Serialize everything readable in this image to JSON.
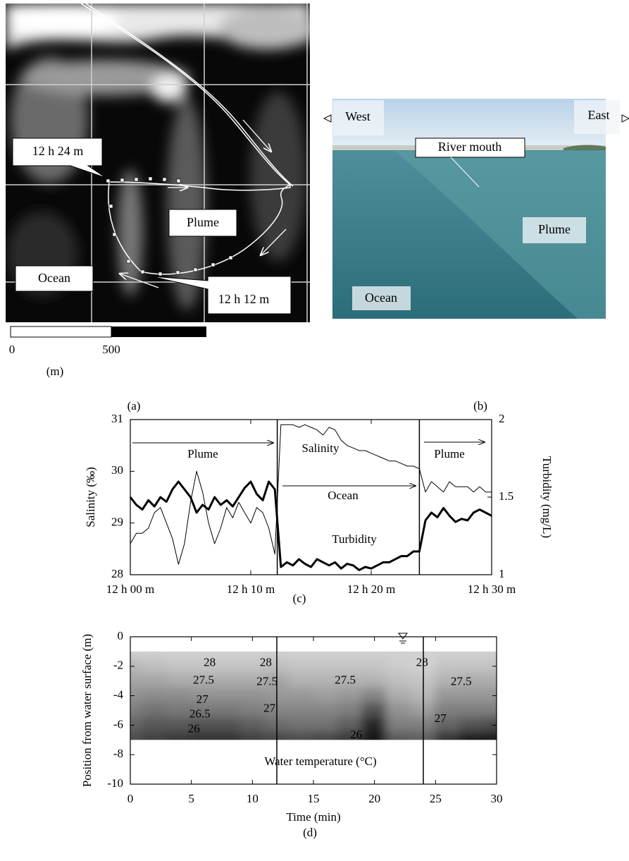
{
  "panel_a": {
    "labels": [
      "12 h 24 m",
      "Plume",
      "Ocean",
      "12 h 12 m"
    ],
    "scale_ticks": [
      0,
      500
    ],
    "scale_unit": "(m)",
    "caption": "(a)"
  },
  "panel_b": {
    "west": "West",
    "east": "East",
    "river_mouth": "River mouth",
    "plume": "Plume",
    "ocean": "Ocean",
    "caption": "(b)"
  },
  "chart_data": [
    {
      "type": "line",
      "caption": "(c)",
      "ylabel": "Salinity (‰)",
      "y2label": "Turbidity (mg/L)",
      "x": [
        0,
        0.5,
        1,
        1.5,
        2,
        2.5,
        3,
        3.5,
        4,
        4.5,
        5,
        5.5,
        6,
        6.5,
        7,
        7.5,
        8,
        8.5,
        9,
        9.5,
        10,
        10.5,
        11,
        11.5,
        12,
        12.5,
        13,
        13.5,
        14,
        14.5,
        15,
        15.5,
        16,
        16.5,
        17,
        17.5,
        18,
        18.5,
        19,
        19.5,
        20,
        20.5,
        21,
        21.5,
        22,
        22.5,
        23,
        23.5,
        24,
        24.5,
        25,
        25.5,
        26,
        26.5,
        27,
        27.5,
        28,
        28.5,
        29,
        29.5,
        30
      ],
      "xlim": [
        0,
        30
      ],
      "xticks": [
        {
          "value": 0,
          "label": "12 h 00 m"
        },
        {
          "value": 10,
          "label": "12 h 10 m"
        },
        {
          "value": 20,
          "label": "12 h 20 m"
        },
        {
          "value": 30,
          "label": "12 h 30 m"
        }
      ],
      "ylim": [
        28,
        31
      ],
      "yticks": [
        28,
        29,
        30,
        31
      ],
      "y2lim": [
        1,
        2
      ],
      "y2ticks": [
        1,
        1.5,
        2
      ],
      "vlines": [
        12.2,
        24
      ],
      "annotations": [
        "Plume",
        "Ocean",
        "Plume"
      ],
      "series": [
        {
          "name": "Salinity",
          "color": "#000000",
          "line_width": 1,
          "values": [
            28.6,
            28.8,
            28.8,
            28.9,
            29.2,
            29.3,
            29.0,
            28.7,
            28.2,
            28.6,
            29.4,
            30.0,
            29.6,
            29.0,
            28.6,
            28.9,
            29.3,
            29.1,
            29.4,
            29.2,
            29.0,
            29.3,
            29.2,
            28.9,
            28.4,
            30.9,
            30.9,
            30.9,
            30.85,
            30.9,
            30.85,
            30.8,
            30.7,
            30.85,
            30.8,
            30.6,
            30.5,
            30.45,
            30.4,
            30.4,
            30.35,
            30.3,
            30.25,
            30.2,
            30.2,
            30.15,
            30.1,
            30.1,
            30.05,
            29.6,
            29.8,
            29.7,
            29.6,
            29.8,
            29.7,
            29.7,
            29.7,
            29.6,
            29.7,
            29.6,
            29.6
          ]
        },
        {
          "name": "Turbidity",
          "color": "#000000",
          "line_width": 3,
          "axis": "y2",
          "values": [
            1.5,
            1.45,
            1.42,
            1.48,
            1.44,
            1.5,
            1.47,
            1.55,
            1.6,
            1.55,
            1.5,
            1.4,
            1.45,
            1.42,
            1.5,
            1.45,
            1.48,
            1.44,
            1.5,
            1.56,
            1.6,
            1.52,
            1.48,
            1.6,
            1.55,
            1.05,
            1.08,
            1.06,
            1.1,
            1.07,
            1.05,
            1.1,
            1.08,
            1.06,
            1.08,
            1.04,
            1.07,
            1.06,
            1.03,
            1.05,
            1.04,
            1.06,
            1.08,
            1.08,
            1.1,
            1.12,
            1.12,
            1.15,
            1.15,
            1.35,
            1.4,
            1.37,
            1.43,
            1.38,
            1.34,
            1.36,
            1.35,
            1.4,
            1.42,
            1.4,
            1.38
          ]
        }
      ]
    },
    {
      "type": "contour",
      "caption": "(d)",
      "xlabel": "Time (min)",
      "ylabel": "Position from water surface (m)",
      "xlim": [
        0,
        30
      ],
      "xticks": [
        0,
        5,
        10,
        15,
        20,
        25,
        30
      ],
      "ylim": [
        -10,
        0
      ],
      "yticks": [
        0,
        -2,
        -4,
        -6,
        -8,
        -10
      ],
      "vlines": [
        12,
        24
      ],
      "x": [
        0,
        2,
        4,
        6,
        8,
        10,
        12,
        14,
        16,
        18,
        20,
        22,
        24,
        26,
        28,
        30
      ],
      "y": [
        -1,
        -2,
        -3,
        -4,
        -5,
        -6,
        -7
      ],
      "z": [
        [
          28.3,
          28.3,
          28.3,
          28.3,
          28.3,
          28.3,
          28.3,
          28.3,
          28.3,
          28.3,
          28.3,
          28.3,
          28.3,
          28.3,
          28.3,
          28.3
        ],
        [
          27.9,
          28.0,
          28.1,
          28.1,
          28.1,
          28.1,
          28.0,
          28.1,
          28.1,
          28.1,
          28.1,
          28.2,
          28.3,
          28.1,
          28.1,
          28.1
        ],
        [
          27.6,
          27.6,
          27.7,
          27.7,
          27.7,
          27.7,
          27.6,
          27.8,
          27.8,
          27.8,
          27.8,
          28.0,
          28.1,
          27.8,
          27.7,
          27.7
        ],
        [
          27.3,
          27.2,
          27.2,
          27.3,
          27.3,
          27.3,
          27.4,
          27.4,
          27.5,
          27.4,
          27.1,
          27.7,
          27.9,
          27.4,
          27.4,
          27.4
        ],
        [
          27.0,
          26.8,
          26.9,
          26.9,
          26.9,
          27.0,
          27.1,
          27.1,
          27.1,
          27.0,
          26.3,
          27.3,
          27.5,
          27.0,
          27.0,
          27.0
        ],
        [
          26.6,
          26.4,
          26.4,
          26.3,
          26.3,
          26.5,
          26.7,
          26.8,
          26.8,
          26.5,
          25.6,
          27.0,
          27.0,
          26.6,
          26.3,
          26.2
        ],
        [
          26.2,
          26.0,
          25.9,
          25.8,
          25.8,
          26.0,
          26.1,
          26.2,
          26.1,
          25.9,
          25.4,
          26.4,
          26.5,
          25.8,
          25.4,
          25.3
        ]
      ],
      "contour_labels": [
        28,
        28,
        27.5,
        27.5,
        27.5,
        28,
        27.5,
        27,
        26.5,
        27,
        26,
        26,
        27
      ],
      "annotations": [
        "Water temperature (°C)"
      ]
    }
  ]
}
